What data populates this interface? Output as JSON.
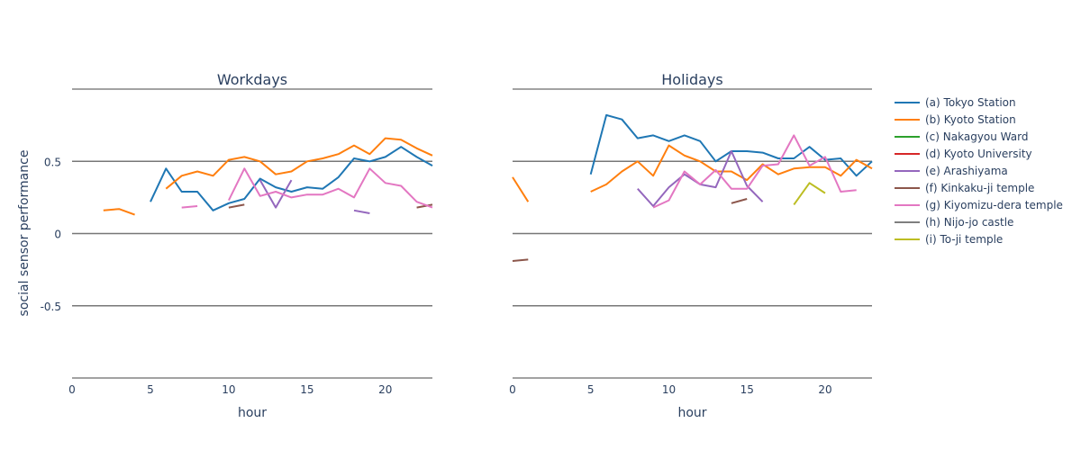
{
  "chart_data": {
    "type": "line",
    "ylabel": "social sensor performance",
    "x_ticks": [
      0,
      5,
      10,
      15,
      20
    ],
    "y_ticks": [
      -0.5,
      0,
      0.5
    ],
    "y_tick_labels": [
      "-0.5",
      "0",
      "0.5"
    ],
    "xlim": [
      0,
      23
    ],
    "ylim": [
      -1,
      1
    ],
    "grid": "horizontal lines at y ticks",
    "legend_position": "right",
    "series": [
      {
        "name": "(a) Tokyo Station",
        "color": "#1f77b4"
      },
      {
        "name": "(b) Kyoto Station",
        "color": "#ff7f0e"
      },
      {
        "name": "(c) Nakagyou Ward",
        "color": "#2ca02c"
      },
      {
        "name": "(d) Kyoto University",
        "color": "#d62728"
      },
      {
        "name": "(e) Arashiyama",
        "color": "#9467bd"
      },
      {
        "name": "(f) Kinkaku-ji temple",
        "color": "#8c564b"
      },
      {
        "name": "(g) Kiyomizu-dera temple",
        "color": "#e377c2"
      },
      {
        "name": "(h) Nijo-jo castle",
        "color": "#7f7f7f"
      },
      {
        "name": "(i) To-ji temple",
        "color": "#bcbd22"
      }
    ],
    "panels": [
      {
        "title": "Workdays",
        "xlabel": "hour",
        "data": [
          {
            "x": [
              5,
              6,
              7,
              8,
              9,
              10,
              11,
              12,
              13,
              14,
              15,
              16,
              17,
              18,
              19,
              20,
              21,
              22,
              23
            ],
            "y": [
              0.22,
              0.45,
              0.29,
              0.29,
              0.16,
              0.21,
              0.24,
              0.38,
              0.32,
              0.29,
              0.32,
              0.31,
              0.39,
              0.52,
              0.5,
              0.53,
              0.6,
              0.53,
              0.47
            ]
          },
          {
            "x": [
              2,
              3,
              4,
              6,
              7,
              8,
              9,
              10,
              11,
              12,
              13,
              14,
              15,
              16,
              17,
              18,
              19,
              20,
              21,
              22,
              23
            ],
            "y": [
              0.16,
              0.17,
              0.13,
              0.31,
              0.4,
              0.43,
              0.4,
              0.51,
              0.53,
              0.5,
              0.41,
              0.43,
              0.5,
              0.52,
              0.55,
              0.61,
              0.55,
              0.66,
              0.65,
              0.59,
              0.54
            ]
          },
          {
            "x": [],
            "y": []
          },
          {
            "x": [],
            "y": []
          },
          {
            "x": [
              12,
              13,
              14,
              18,
              19
            ],
            "y": [
              0.37,
              0.18,
              0.37,
              0.16,
              0.14
            ]
          },
          {
            "x": [
              10,
              11,
              22,
              23
            ],
            "y": [
              0.18,
              0.2,
              0.18,
              0.2
            ]
          },
          {
            "x": [
              7,
              8,
              10,
              11,
              12,
              13,
              14,
              15,
              16,
              17,
              18,
              19,
              20,
              21,
              22,
              23
            ],
            "y": [
              0.18,
              0.19,
              0.23,
              0.45,
              0.26,
              0.29,
              0.25,
              0.27,
              0.27,
              0.31,
              0.25,
              0.45,
              0.35,
              0.33,
              0.22,
              0.18
            ]
          },
          {
            "x": [],
            "y": []
          },
          {
            "x": [],
            "y": []
          }
        ]
      },
      {
        "title": "Holidays",
        "xlabel": "hour",
        "data": [
          {
            "x": [
              5,
              6,
              7,
              8,
              9,
              10,
              11,
              12,
              13,
              14,
              15,
              16,
              17,
              18,
              19,
              20,
              21,
              22,
              23
            ],
            "y": [
              0.41,
              0.82,
              0.79,
              0.66,
              0.68,
              0.64,
              0.68,
              0.64,
              0.5,
              0.57,
              0.57,
              0.56,
              0.52,
              0.52,
              0.6,
              0.51,
              0.52,
              0.4,
              0.5
            ]
          },
          {
            "x": [
              0,
              1,
              5,
              6,
              7,
              8,
              9,
              10,
              11,
              12,
              13,
              14,
              15,
              16,
              17,
              18,
              19,
              20,
              21,
              22,
              23
            ],
            "y": [
              0.39,
              0.22,
              0.29,
              0.34,
              0.43,
              0.5,
              0.4,
              0.61,
              0.54,
              0.5,
              0.43,
              0.43,
              0.37,
              0.48,
              0.41,
              0.45,
              0.46,
              0.46,
              0.4,
              0.51,
              0.45
            ]
          },
          {
            "x": [],
            "y": []
          },
          {
            "x": [],
            "y": []
          },
          {
            "x": [
              8,
              9,
              10,
              11,
              12,
              13,
              14,
              15,
              16
            ],
            "y": [
              0.31,
              0.19,
              0.32,
              0.41,
              0.34,
              0.32,
              0.57,
              0.33,
              0.22
            ]
          },
          {
            "x": [
              0,
              1,
              14,
              15
            ],
            "y": [
              -0.19,
              -0.18,
              0.21,
              0.24
            ]
          },
          {
            "x": [
              9,
              10,
              11,
              12,
              13,
              14,
              15,
              16,
              17,
              18,
              19,
              20,
              21,
              22
            ],
            "y": [
              0.18,
              0.23,
              0.43,
              0.34,
              0.44,
              0.31,
              0.31,
              0.47,
              0.48,
              0.68,
              0.47,
              0.53,
              0.29,
              0.3
            ]
          },
          {
            "x": [],
            "y": []
          },
          {
            "x": [
              18,
              19,
              20
            ],
            "y": [
              0.2,
              0.35,
              0.28
            ]
          }
        ]
      }
    ]
  }
}
